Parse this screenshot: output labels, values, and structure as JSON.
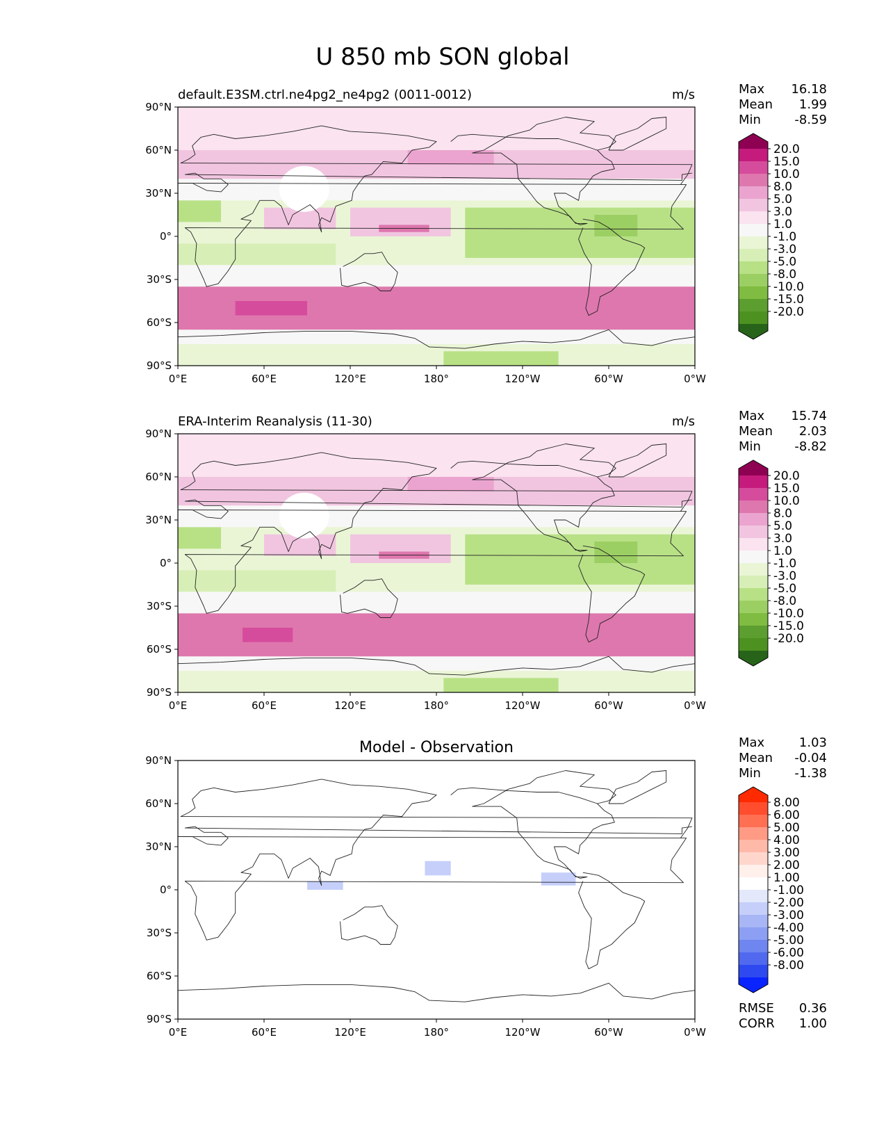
{
  "figure_title": "U 850 mb SON global",
  "stats_labels": {
    "max": "Max",
    "mean": "Mean",
    "min": "Min",
    "rmse": "RMSE",
    "corr": "CORR"
  },
  "colors": {
    "main_scale": [
      "#8e0152",
      "#c51b7d",
      "#d64c9c",
      "#de77ae",
      "#eba4cf",
      "#f1c5e0",
      "#fbe3f0",
      "#f7f7f7",
      "#eaf5d6",
      "#d7efb7",
      "#b8e186",
      "#9ccf63",
      "#7fbc41",
      "#5c9e2f",
      "#4d9221",
      "#27641a"
    ],
    "diff_scale": [
      "#ff2a00",
      "#ff4d2e",
      "#ff6f52",
      "#ff9a84",
      "#ffb9a8",
      "#ffd6cc",
      "#fff0ec",
      "#ffffff",
      "#e3e8fb",
      "#c5cffa",
      "#a9b6f5",
      "#8c9ff3",
      "#6f86f0",
      "#5169ee",
      "#2e49ef",
      "#0a24ff"
    ]
  },
  "chart_data": [
    {
      "type": "heatmap",
      "panel": "test",
      "title": "default.E3SM.ctrl.ne4pg2_ne4pg2 (0011-0012)",
      "units": "m/s",
      "stats": {
        "max": "16.18",
        "mean": "1.99",
        "min": "-8.59"
      },
      "x_ticks": [
        "0°E",
        "60°E",
        "120°E",
        "180°",
        "120°W",
        "60°W",
        "0°W"
      ],
      "y_ticks": [
        "90°N",
        "60°N",
        "30°N",
        "0°",
        "30°S",
        "60°S",
        "90°S"
      ],
      "xlim": [
        0,
        360
      ],
      "ylim": [
        -90,
        90
      ],
      "colorbar_levels": [
        "20.0",
        "15.0",
        "10.0",
        "8.0",
        "5.0",
        "3.0",
        "1.0",
        "-1.0",
        "-3.0",
        "-5.0",
        "-8.0",
        "-10.0",
        "-15.0",
        "-20.0"
      ],
      "regions": [
        {
          "lon": [
            0,
            360
          ],
          "lat": [
            60,
            90
          ],
          "value": 3
        },
        {
          "lon": [
            0,
            360
          ],
          "lat": [
            40,
            60
          ],
          "value": 6
        },
        {
          "lon": [
            160,
            220
          ],
          "lat": [
            50,
            60
          ],
          "value": 9
        },
        {
          "lon": [
            0,
            360
          ],
          "lat": [
            25,
            40
          ],
          "value": 2
        },
        {
          "lon": [
            0,
            30
          ],
          "lat": [
            10,
            25
          ],
          "value": -5
        },
        {
          "lon": [
            60,
            110
          ],
          "lat": [
            5,
            20
          ],
          "value": 6
        },
        {
          "lon": [
            120,
            190
          ],
          "lat": [
            0,
            20
          ],
          "value": 6
        },
        {
          "lon": [
            140,
            175
          ],
          "lat": [
            3,
            8
          ],
          "value": 12
        },
        {
          "lon": [
            200,
            360
          ],
          "lat": [
            -15,
            20
          ],
          "value": -4
        },
        {
          "lon": [
            290,
            320
          ],
          "lat": [
            0,
            15
          ],
          "value": -8
        },
        {
          "lon": [
            0,
            110
          ],
          "lat": [
            -20,
            -5
          ],
          "value": -3
        },
        {
          "lon": [
            0,
            360
          ],
          "lat": [
            -35,
            -20
          ],
          "value": 1
        },
        {
          "lon": [
            0,
            360
          ],
          "lat": [
            -65,
            -35
          ],
          "value": 10
        },
        {
          "lon": [
            40,
            90
          ],
          "lat": [
            -55,
            -45
          ],
          "value": 15
        },
        {
          "lon": [
            0,
            360
          ],
          "lat": [
            -75,
            -65
          ],
          "value": 2
        },
        {
          "lon": [
            185,
            265
          ],
          "lat": [
            -90,
            -80
          ],
          "value": -4
        }
      ]
    },
    {
      "type": "heatmap",
      "panel": "reference",
      "title": "ERA-Interim Reanalysis (11-30)",
      "units": "m/s",
      "stats": {
        "max": "15.74",
        "mean": "2.03",
        "min": "-8.82"
      },
      "x_ticks": [
        "0°E",
        "60°E",
        "120°E",
        "180°",
        "120°W",
        "60°W",
        "0°W"
      ],
      "y_ticks": [
        "90°N",
        "60°N",
        "30°N",
        "0°",
        "30°S",
        "60°S",
        "90°S"
      ],
      "xlim": [
        0,
        360
      ],
      "ylim": [
        -90,
        90
      ],
      "colorbar_levels": [
        "20.0",
        "15.0",
        "10.0",
        "8.0",
        "5.0",
        "3.0",
        "1.0",
        "-1.0",
        "-3.0",
        "-5.0",
        "-8.0",
        "-10.0",
        "-15.0",
        "-20.0"
      ],
      "regions": [
        {
          "lon": [
            0,
            360
          ],
          "lat": [
            60,
            90
          ],
          "value": 3
        },
        {
          "lon": [
            0,
            360
          ],
          "lat": [
            40,
            60
          ],
          "value": 6
        },
        {
          "lon": [
            160,
            220
          ],
          "lat": [
            50,
            60
          ],
          "value": 9
        },
        {
          "lon": [
            0,
            360
          ],
          "lat": [
            25,
            40
          ],
          "value": 2
        },
        {
          "lon": [
            0,
            30
          ],
          "lat": [
            10,
            25
          ],
          "value": -5
        },
        {
          "lon": [
            60,
            110
          ],
          "lat": [
            5,
            20
          ],
          "value": 6
        },
        {
          "lon": [
            120,
            190
          ],
          "lat": [
            0,
            20
          ],
          "value": 6
        },
        {
          "lon": [
            140,
            175
          ],
          "lat": [
            3,
            8
          ],
          "value": 12
        },
        {
          "lon": [
            200,
            360
          ],
          "lat": [
            -15,
            20
          ],
          "value": -4
        },
        {
          "lon": [
            290,
            320
          ],
          "lat": [
            0,
            15
          ],
          "value": -8
        },
        {
          "lon": [
            0,
            110
          ],
          "lat": [
            -20,
            -5
          ],
          "value": -3
        },
        {
          "lon": [
            0,
            360
          ],
          "lat": [
            -35,
            -20
          ],
          "value": 1
        },
        {
          "lon": [
            0,
            360
          ],
          "lat": [
            -65,
            -35
          ],
          "value": 10
        },
        {
          "lon": [
            45,
            80
          ],
          "lat": [
            -55,
            -45
          ],
          "value": 15
        },
        {
          "lon": [
            0,
            360
          ],
          "lat": [
            -75,
            -65
          ],
          "value": 2
        },
        {
          "lon": [
            185,
            265
          ],
          "lat": [
            -90,
            -80
          ],
          "value": -4
        }
      ]
    },
    {
      "type": "heatmap",
      "panel": "difference",
      "title": "Model - Observation",
      "units": "",
      "stats": {
        "max": "1.03",
        "mean": "-0.04",
        "min": "-1.38"
      },
      "metrics": {
        "rmse": "0.36",
        "corr": "1.00"
      },
      "x_ticks": [
        "0°E",
        "60°E",
        "120°E",
        "180°",
        "120°W",
        "60°W",
        "0°W"
      ],
      "y_ticks": [
        "90°N",
        "60°N",
        "30°N",
        "0°",
        "30°S",
        "60°S",
        "90°S"
      ],
      "xlim": [
        0,
        360
      ],
      "ylim": [
        -90,
        90
      ],
      "colorbar_levels": [
        "8.00",
        "6.00",
        "5.00",
        "4.00",
        "3.00",
        "2.00",
        "1.00",
        "-1.00",
        "-2.00",
        "-3.00",
        "-4.00",
        "-5.00",
        "-6.00",
        "-8.00"
      ],
      "regions": [
        {
          "lon": [
            172,
            190
          ],
          "lat": [
            10,
            20
          ],
          "value": -1.3
        },
        {
          "lon": [
            90,
            115
          ],
          "lat": [
            0,
            6
          ],
          "value": -1.2
        },
        {
          "lon": [
            253,
            277
          ],
          "lat": [
            3,
            12
          ],
          "value": -1.3
        }
      ]
    }
  ]
}
